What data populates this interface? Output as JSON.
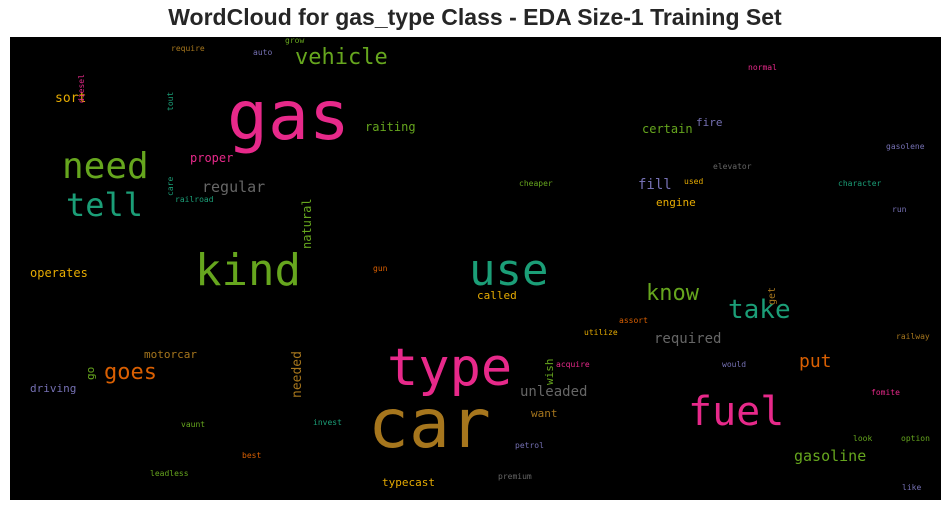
{
  "title": "WordCloud for gas_type Class - EDA Size-1 Training Set",
  "chart_data": {
    "type": "wordcloud",
    "title": "WordCloud for gas_type Class - EDA Size-1 Training Set",
    "background": "#000000",
    "words": [
      {
        "text": "gas",
        "color": "#e7298a"
      },
      {
        "text": "car",
        "color": "#a6761d"
      },
      {
        "text": "type",
        "color": "#e7298a"
      },
      {
        "text": "kind",
        "color": "#66a61e"
      },
      {
        "text": "use",
        "color": "#1b9e77"
      },
      {
        "text": "fuel",
        "color": "#e7298a"
      },
      {
        "text": "need",
        "color": "#66a61e"
      },
      {
        "text": "tell",
        "color": "#1b9e77"
      },
      {
        "text": "vehicle",
        "color": "#66a61e"
      },
      {
        "text": "take",
        "color": "#1b9e77"
      },
      {
        "text": "know",
        "color": "#66a61e"
      },
      {
        "text": "goes",
        "color": "#d95f02"
      },
      {
        "text": "put",
        "color": "#d95f02"
      },
      {
        "text": "gasoline",
        "color": "#66a61e"
      },
      {
        "text": "regular",
        "color": "#666666"
      },
      {
        "text": "unleaded",
        "color": "#666666"
      },
      {
        "text": "required",
        "color": "#666666"
      },
      {
        "text": "fill",
        "color": "#7570b3"
      },
      {
        "text": "sort",
        "color": "#e6ab02"
      },
      {
        "text": "raiting",
        "color": "#66a61e"
      },
      {
        "text": "certain",
        "color": "#66a61e"
      },
      {
        "text": "proper",
        "color": "#e7298a"
      },
      {
        "text": "operates",
        "color": "#e6ab02"
      },
      {
        "text": "motorcar",
        "color": "#a6761d"
      },
      {
        "text": "driving",
        "color": "#7570b3"
      },
      {
        "text": "typecast",
        "color": "#e6ab02"
      },
      {
        "text": "called",
        "color": "#e6ab02"
      },
      {
        "text": "engine",
        "color": "#e6ab02"
      },
      {
        "text": "want",
        "color": "#a6761d"
      },
      {
        "text": "fire",
        "color": "#7570b3"
      },
      {
        "text": "natural",
        "color": "#66a61e"
      },
      {
        "text": "needed",
        "color": "#a6761d"
      },
      {
        "text": "wish",
        "color": "#66a61e"
      },
      {
        "text": "go",
        "color": "#66a61e"
      },
      {
        "text": "get",
        "color": "#a6761d"
      },
      {
        "text": "diesel",
        "color": "#e7298a"
      },
      {
        "text": "require",
        "color": "#a6761d"
      },
      {
        "text": "auto",
        "color": "#7570b3"
      },
      {
        "text": "grow",
        "color": "#66a61e"
      },
      {
        "text": "tout",
        "color": "#1b9e77"
      },
      {
        "text": "normal",
        "color": "#e7298a"
      },
      {
        "text": "gasolene",
        "color": "#7570b3"
      },
      {
        "text": "elevator",
        "color": "#666666"
      },
      {
        "text": "used",
        "color": "#e6ab02"
      },
      {
        "text": "character",
        "color": "#1b9e77"
      },
      {
        "text": "cheaper",
        "color": "#66a61e"
      },
      {
        "text": "care",
        "color": "#1b9e77"
      },
      {
        "text": "railroad",
        "color": "#1b9e77"
      },
      {
        "text": "run",
        "color": "#7570b3"
      },
      {
        "text": "gun",
        "color": "#d95f02"
      },
      {
        "text": "assort",
        "color": "#d95f02"
      },
      {
        "text": "utilize",
        "color": "#e6ab02"
      },
      {
        "text": "acquire",
        "color": "#e7298a"
      },
      {
        "text": "would",
        "color": "#7570b3"
      },
      {
        "text": "railway",
        "color": "#a6761d"
      },
      {
        "text": "fomite",
        "color": "#e7298a"
      },
      {
        "text": "vaunt",
        "color": "#66a61e"
      },
      {
        "text": "invest",
        "color": "#1b9e77"
      },
      {
        "text": "best",
        "color": "#d95f02"
      },
      {
        "text": "petrol",
        "color": "#7570b3"
      },
      {
        "text": "look",
        "color": "#66a61e"
      },
      {
        "text": "option",
        "color": "#66a61e"
      },
      {
        "text": "leadless",
        "color": "#66a61e"
      },
      {
        "text": "premium",
        "color": "#666666"
      },
      {
        "text": "like",
        "color": "#7570b3"
      }
    ]
  }
}
